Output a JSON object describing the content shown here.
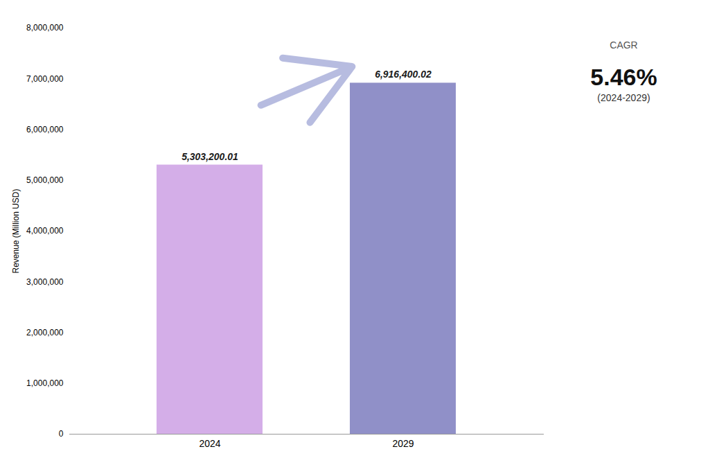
{
  "chart_data": {
    "type": "bar",
    "categories": [
      "2024",
      "2029"
    ],
    "values": [
      5303200.01,
      6916400.02
    ],
    "value_labels": [
      "5,303,200.01",
      "6,916,400.02"
    ],
    "data_labels": true,
    "colors": [
      "#d4aee8",
      "#9090c8"
    ],
    "ylabel": "Revenue (Million USD)",
    "ylim": [
      0,
      8000000
    ],
    "yticks": [
      0,
      {
        "value": 1000000,
        "label": "1,000,000"
      },
      {
        "value": 2000000,
        "label": "2,000,000"
      },
      {
        "value": 3000000,
        "label": "3,000,000"
      },
      {
        "value": 4000000,
        "label": "4,000,000"
      },
      {
        "value": 5000000,
        "label": "5,000,000"
      },
      {
        "value": 6000000,
        "label": "6,000,000"
      },
      {
        "value": 7000000,
        "label": "7,000,000"
      },
      {
        "value": 8000000,
        "label": "8,000,000"
      }
    ],
    "annotations": [
      "CAGR",
      "5.46%",
      "(2024-2029)"
    ],
    "grid": false
  }
}
